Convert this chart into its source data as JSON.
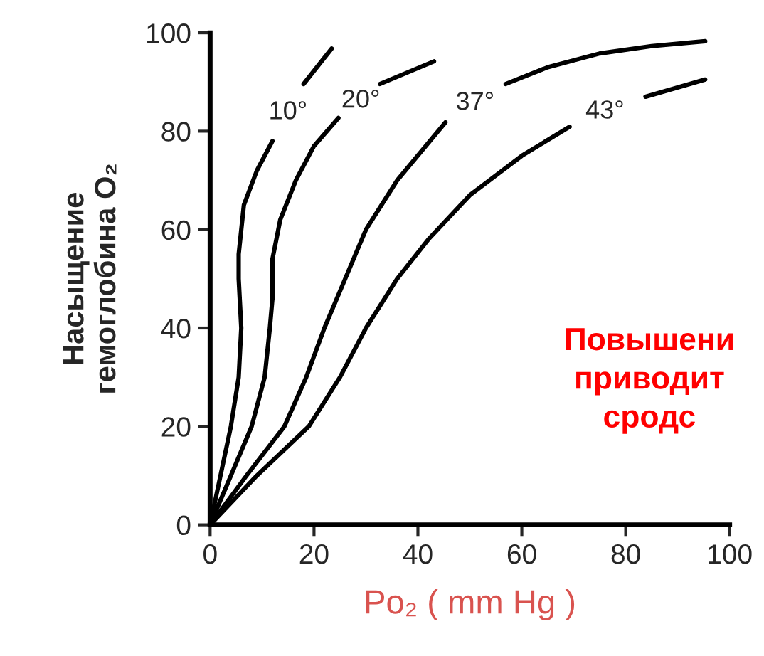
{
  "chart_data": {
    "type": "line",
    "xlabel": "Po₂ ( mm Hg )",
    "ylabel": "Насыщение\nгемоглобина O₂",
    "xlim": [
      0,
      100
    ],
    "ylim": [
      0,
      100
    ],
    "xticks": [
      0,
      20,
      40,
      60,
      80,
      100
    ],
    "yticks": [
      0,
      20,
      40,
      60,
      80,
      100
    ],
    "grid": false,
    "legend": false,
    "line_style": "solid",
    "marker": "none",
    "series": [
      {
        "name": "10°",
        "color": "#000000",
        "x": [
          0,
          2,
          4,
          5.5,
          6,
          5.5,
          5.5,
          6.5,
          9,
          12,
          15,
          18,
          23.4
        ],
        "values": [
          0,
          10,
          20,
          30,
          40,
          50,
          55,
          65,
          72,
          78,
          null,
          89.6,
          96.8
        ]
      },
      {
        "name": "20°",
        "color": "#000000",
        "x": [
          0,
          4,
          8,
          10.5,
          11.5,
          12,
          12,
          13.5,
          16.5,
          20,
          24.7,
          29,
          32.7,
          43.1
        ],
        "values": [
          0,
          10,
          20,
          30,
          40,
          46,
          54,
          62,
          70,
          77,
          82.7,
          null,
          89.6,
          94.2
        ]
      },
      {
        "name": "37°",
        "color": "#000000",
        "x": [
          0,
          7,
          14.3,
          18.5,
          22,
          26,
          30,
          36,
          45.3,
          51,
          56.9,
          65,
          75,
          85,
          95.3
        ],
        "values": [
          0,
          10,
          20,
          30,
          40,
          50,
          60,
          70,
          81.8,
          null,
          89.6,
          93,
          95.8,
          97.3,
          98.3
        ]
      },
      {
        "name": "43°",
        "color": "#000000",
        "x": [
          0,
          9,
          19,
          25,
          30,
          36,
          42,
          50,
          60,
          69.2,
          76,
          83.8,
          95.3
        ],
        "values": [
          0,
          10,
          20,
          30,
          40,
          50,
          58,
          67,
          75,
          80.9,
          null,
          87,
          90.5
        ]
      }
    ],
    "annotations": [
      "Повышени\nприводит\nсродс"
    ]
  }
}
